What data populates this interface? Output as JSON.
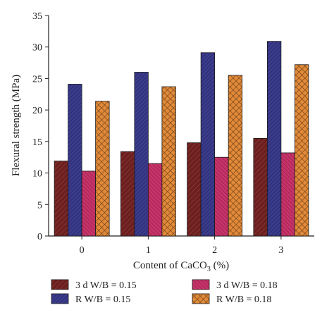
{
  "chart_data": {
    "type": "bar",
    "title": "",
    "xlabel": "Content of CaCO",
    "xlabel_sub": "3",
    "xlabel_suffix": " (%)",
    "ylabel": "Flexural strength (MPa)",
    "ylim": [
      0,
      35
    ],
    "yticks": [
      0,
      5,
      10,
      15,
      20,
      25,
      30,
      35
    ],
    "categories": [
      "0",
      "1",
      "2",
      "3"
    ],
    "series": [
      {
        "name": "3 d W/B = 0.15",
        "values": [
          11.9,
          13.4,
          14.8,
          15.5
        ],
        "color": "#6b1f1f",
        "pattern": "hatch-brown"
      },
      {
        "name": "R W/B = 0.15",
        "values": [
          24.1,
          26.0,
          29.1,
          30.9
        ],
        "color": "#3b3c8c",
        "pattern": "hatch-navy"
      },
      {
        "name": "3 d W/B = 0.18",
        "values": [
          10.3,
          11.5,
          12.5,
          13.2
        ],
        "color": "#c8336a",
        "pattern": "hatch-pink"
      },
      {
        "name": "R W/B = 0.18",
        "values": [
          21.4,
          23.7,
          25.5,
          27.2
        ],
        "color": "#e08a3a",
        "pattern": "crosshatch-orange"
      }
    ],
    "legend": {
      "placement": "bottom",
      "order": [
        0,
        2,
        1,
        3
      ]
    },
    "grid": false
  }
}
